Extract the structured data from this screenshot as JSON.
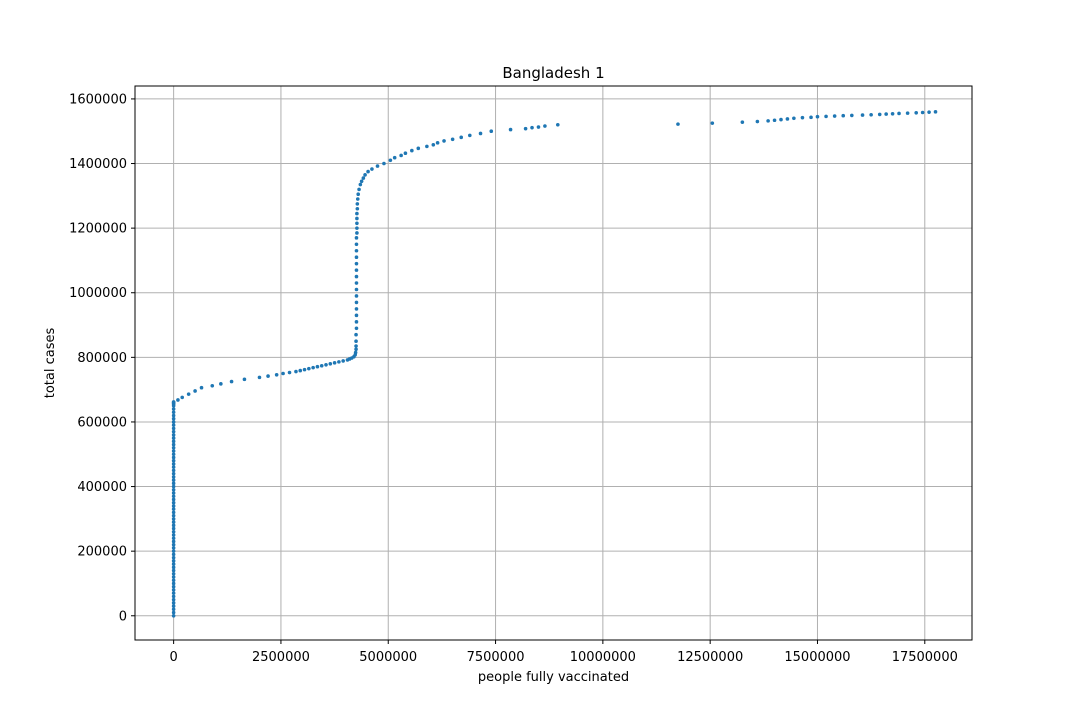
{
  "chart_data": {
    "type": "scatter",
    "title": "Bangladesh 1",
    "xlabel": "people fully vaccinated",
    "ylabel": "total cases",
    "xlim": [
      -900000,
      18600000
    ],
    "ylim": [
      -75000,
      1640000
    ],
    "xticks": [
      0,
      2500000,
      5000000,
      7500000,
      10000000,
      12500000,
      15000000,
      17500000
    ],
    "yticks": [
      0,
      200000,
      400000,
      600000,
      800000,
      1000000,
      1200000,
      1400000,
      1600000
    ],
    "grid": true,
    "marker_color": "#1f77b4",
    "series": [
      {
        "x": [
          0,
          0,
          0,
          0,
          0,
          0,
          0,
          0,
          0,
          0,
          0,
          0,
          0,
          0,
          0,
          0,
          0,
          0,
          0,
          0,
          0,
          0,
          0,
          0,
          0,
          0,
          0,
          0,
          0,
          0,
          0,
          0,
          0,
          0,
          0,
          0,
          0,
          0,
          0,
          0,
          0,
          0,
          0,
          0,
          0,
          0,
          0,
          0,
          0,
          0,
          0,
          0,
          0,
          0,
          0,
          0,
          0,
          0,
          0,
          0,
          0,
          0,
          0,
          0,
          0,
          0,
          0,
          0,
          0,
          0,
          100000,
          200000,
          350000,
          500000,
          650000,
          900000,
          1100000,
          1350000,
          1650000,
          2000000,
          2200000,
          2400000,
          2550000,
          2700000,
          2850000,
          2950000,
          3050000,
          3150000,
          3250000,
          3350000,
          3450000,
          3550000,
          3650000,
          3750000,
          3850000,
          3950000,
          4050000,
          4100000,
          4150000,
          4200000,
          4230000,
          4240000,
          4250000,
          4250000,
          4250000,
          4250000,
          4260000,
          4260000,
          4260000,
          4260000,
          4260000,
          4260000,
          4260000,
          4260000,
          4260000,
          4260000,
          4260000,
          4260000,
          4260000,
          4260000,
          4260000,
          4270000,
          4270000,
          4270000,
          4270000,
          4270000,
          4280000,
          4280000,
          4290000,
          4300000,
          4320000,
          4350000,
          4380000,
          4420000,
          4460000,
          4530000,
          4620000,
          4750000,
          4900000,
          5050000,
          5150000,
          5300000,
          5400000,
          5550000,
          5700000,
          5900000,
          6050000,
          6150000,
          6300000,
          6500000,
          6700000,
          6900000,
          7150000,
          7400000,
          7850000,
          8200000,
          8350000,
          8500000,
          8650000,
          8950000,
          11750000,
          12550000,
          13250000,
          13600000,
          13850000,
          14000000,
          14150000,
          14300000,
          14450000,
          14650000,
          14850000,
          15000000,
          15200000,
          15400000,
          15600000,
          15800000,
          16050000,
          16250000,
          16450000,
          16600000,
          16750000,
          16900000,
          17100000,
          17300000,
          17450000,
          17600000,
          17750000
        ],
        "y": [
          0,
          10000,
          20000,
          30000,
          40000,
          50000,
          60000,
          70000,
          80000,
          90000,
          100000,
          110000,
          120000,
          130000,
          140000,
          150000,
          160000,
          170000,
          180000,
          190000,
          200000,
          210000,
          220000,
          230000,
          240000,
          250000,
          260000,
          270000,
          280000,
          290000,
          300000,
          310000,
          320000,
          330000,
          340000,
          350000,
          360000,
          370000,
          380000,
          390000,
          400000,
          410000,
          420000,
          430000,
          440000,
          450000,
          460000,
          470000,
          480000,
          490000,
          500000,
          510000,
          520000,
          530000,
          540000,
          550000,
          560000,
          570000,
          580000,
          590000,
          600000,
          610000,
          620000,
          630000,
          640000,
          650000,
          655000,
          658000,
          660000,
          662000,
          668000,
          676000,
          686000,
          696000,
          706000,
          712000,
          718000,
          725000,
          732000,
          738000,
          742000,
          746000,
          750000,
          753000,
          756000,
          759000,
          762000,
          765000,
          768000,
          771000,
          774000,
          777000,
          780000,
          783000,
          786000,
          789000,
          792000,
          795000,
          798000,
          802000,
          808000,
          815000,
          825000,
          835000,
          850000,
          870000,
          890000,
          910000,
          930000,
          950000,
          970000,
          990000,
          1010000,
          1030000,
          1050000,
          1070000,
          1090000,
          1110000,
          1130000,
          1150000,
          1170000,
          1185000,
          1200000,
          1215000,
          1230000,
          1245000,
          1260000,
          1275000,
          1290000,
          1305000,
          1320000,
          1335000,
          1345000,
          1355000,
          1365000,
          1375000,
          1383000,
          1392000,
          1400000,
          1410000,
          1418000,
          1425000,
          1432000,
          1440000,
          1447000,
          1453000,
          1458000,
          1464000,
          1470000,
          1475000,
          1481000,
          1487000,
          1493000,
          1500000,
          1505000,
          1508000,
          1511000,
          1513000,
          1516000,
          1520000,
          1522000,
          1525000,
          1528000,
          1530000,
          1532000,
          1534000,
          1536000,
          1538000,
          1540000,
          1542000,
          1543000,
          1545000,
          1546000,
          1547000,
          1548000,
          1549000,
          1550000,
          1551000,
          1552000,
          1553000,
          1554000,
          1555000,
          1556000,
          1557000,
          1558000,
          1559000,
          1560000
        ]
      }
    ]
  }
}
